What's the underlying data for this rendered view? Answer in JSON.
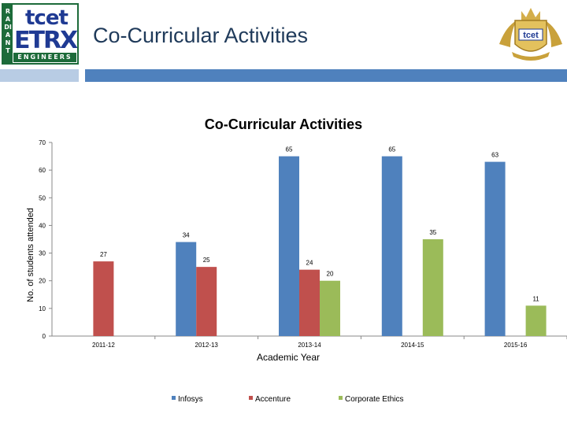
{
  "header": {
    "title": "Co-Curricular Activities",
    "logo_left": {
      "tcet": "tcet",
      "etrx": "ETRX",
      "side": "RADIANT",
      "bottom": "ENGINEERS"
    },
    "logo_right": {
      "text": "tcet"
    },
    "colors": {
      "accent_bar": "#4f81bd",
      "accent_bar_light": "#b8cce4",
      "title_text": "#1f3a5a"
    }
  },
  "chart_data": {
    "type": "bar",
    "title": "Co-Curricular Activities",
    "xlabel": "Academic Year",
    "ylabel": "No. of students attended",
    "ylim": [
      0,
      70
    ],
    "yticks": [
      0,
      10,
      20,
      30,
      40,
      50,
      60,
      70
    ],
    "categories": [
      "2011-12",
      "2012-13",
      "2013-14",
      "2014-15",
      "2015-16"
    ],
    "series": [
      {
        "name": "Infosys",
        "color": "#4f81bd",
        "values": [
          null,
          34,
          65,
          65,
          63
        ]
      },
      {
        "name": "Accenture",
        "color": "#c0504d",
        "values": [
          27,
          25,
          24,
          null,
          null
        ]
      },
      {
        "name": "Corporate Ethics",
        "color": "#9bbb59",
        "values": [
          null,
          null,
          20,
          35,
          11
        ]
      }
    ],
    "legend": "bottom",
    "grid": false
  }
}
